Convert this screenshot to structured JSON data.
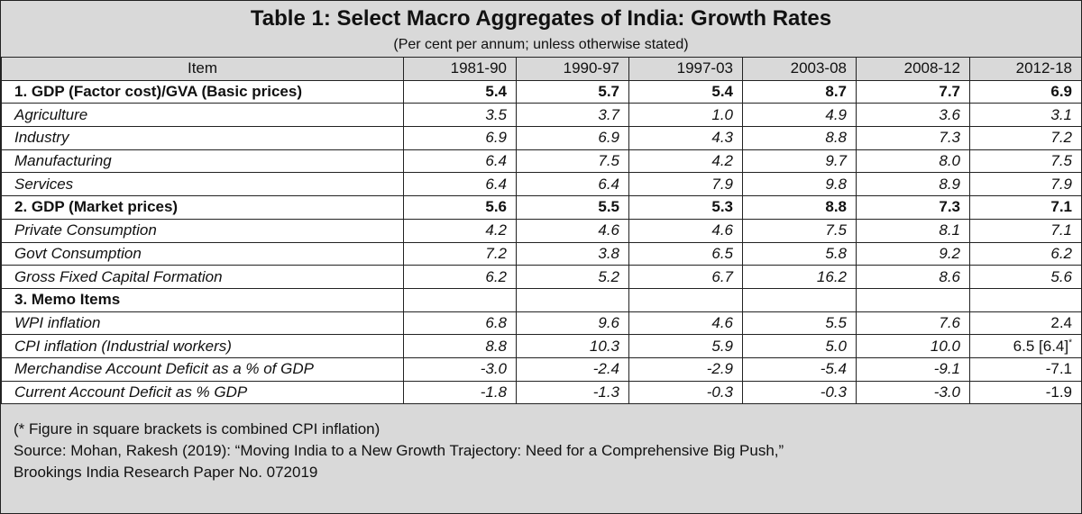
{
  "header": {
    "title": "Table 1: Select Macro Aggregates of India: Growth Rates",
    "subtitle": "(Per cent per annum; unless otherwise stated)"
  },
  "columns": [
    "Item",
    "1981-90",
    "1990-97",
    "1997-03",
    "2003-08",
    "2008-12",
    "2012-18"
  ],
  "rows": [
    {
      "item": "1. GDP (Factor cost)/GVA (Basic prices)",
      "values": [
        "5.4",
        "5.7",
        "5.4",
        "8.7",
        "7.7",
        "6.9"
      ]
    },
    {
      "item": "Agriculture",
      "values": [
        "3.5",
        "3.7",
        "1.0",
        "4.9",
        "3.6",
        "3.1"
      ]
    },
    {
      "item": "Industry",
      "values": [
        "6.9",
        "6.9",
        "4.3",
        "8.8",
        "7.3",
        "7.2"
      ]
    },
    {
      "item": "Manufacturing",
      "values": [
        "6.4",
        "7.5",
        "4.2",
        "9.7",
        "8.0",
        "7.5"
      ]
    },
    {
      "item": "Services",
      "values": [
        "6.4",
        "6.4",
        "7.9",
        "9.8",
        "8.9",
        "7.9"
      ]
    },
    {
      "item": "2. GDP (Market prices)",
      "values": [
        "5.6",
        "5.5",
        "5.3",
        "8.8",
        "7.3",
        "7.1"
      ]
    },
    {
      "item": "Private Consumption",
      "values": [
        "4.2",
        "4.6",
        "4.6",
        "7.5",
        "8.1",
        "7.1"
      ]
    },
    {
      "item": "Govt Consumption",
      "values": [
        "7.2",
        "3.8",
        "6.5",
        "5.8",
        "9.2",
        "6.2"
      ]
    },
    {
      "item": "Gross Fixed Capital Formation",
      "values": [
        "6.2",
        "5.2",
        "6.7",
        "16.2",
        "8.6",
        "5.6"
      ]
    },
    {
      "item": "3. Memo Items",
      "values": [
        "",
        "",
        "",
        "",
        "",
        ""
      ]
    },
    {
      "item": "WPI inflation",
      "values": [
        "6.8",
        "9.6",
        "4.6",
        "5.5",
        "7.6",
        "2.4"
      ]
    },
    {
      "item": "CPI inflation (Industrial workers)",
      "values": [
        "8.8",
        "10.3",
        "5.9",
        "5.0",
        "10.0",
        "6.5 [6.4]"
      ],
      "last_marker": "*"
    },
    {
      "item": "Merchandise Account Deficit as a % of GDP",
      "values": [
        "-3.0",
        "-2.4",
        "-2.9",
        "-5.4",
        "-9.1",
        "-7.1"
      ]
    },
    {
      "item": "Current Account Deficit as %  GDP",
      "values": [
        "-1.8",
        "-1.3",
        "-0.3",
        "-0.3",
        "-3.0",
        "-1.9"
      ]
    }
  ],
  "footnotes": [
    "(* Figure in square brackets is combined CPI inflation)",
    "Source: Mohan, Rakesh (2019): “Moving India to a New Growth Trajectory: Need for a Comprehensive Big Push,”",
    "Brookings India Research Paper No. 072019"
  ]
}
